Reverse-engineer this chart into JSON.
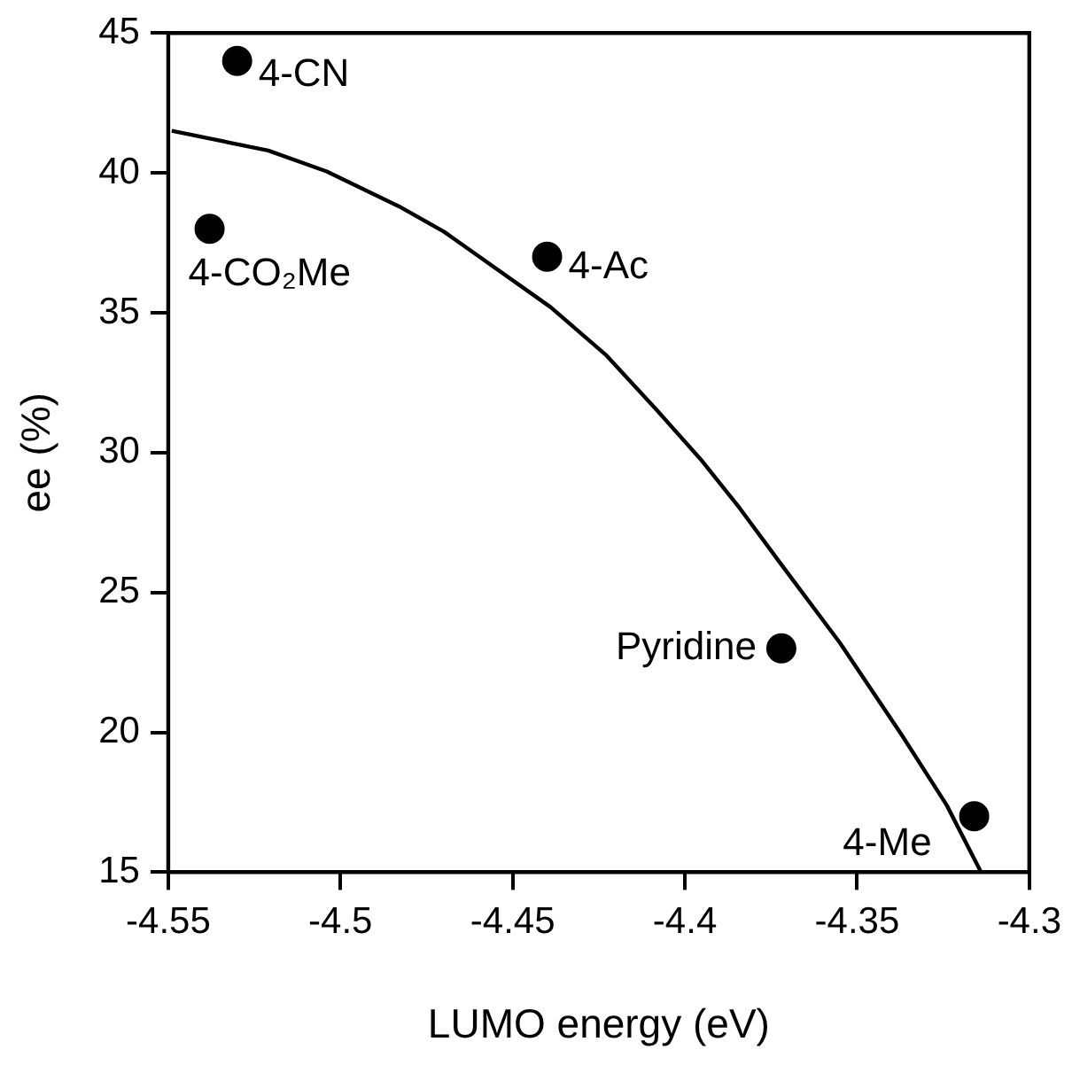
{
  "chart_data": {
    "type": "scatter",
    "xlabel": "LUMO energy (eV)",
    "ylabel": "ee (%)",
    "xlim": [
      -4.55,
      -4.3
    ],
    "xticks": [
      -4.55,
      -4.5,
      -4.45,
      -4.4,
      -4.35,
      -4.3
    ],
    "ylim": [
      15,
      45
    ],
    "yticks": [
      15,
      20,
      25,
      30,
      35,
      40,
      45
    ],
    "grid": false,
    "legend": false,
    "series": [
      {
        "type": "scatter",
        "color": "#000000",
        "marker": "circle",
        "x": [
          -4.53,
          -4.538,
          -4.44,
          -4.372,
          -4.316
        ],
        "values": [
          44,
          38,
          37,
          23,
          17
        ]
      },
      {
        "type": "line",
        "color": "#000000",
        "marker": "none",
        "line_style": "solid",
        "x": [
          -4.549,
          -4.521,
          -4.504,
          -4.483,
          -4.47,
          -4.439,
          -4.423,
          -4.408,
          -4.395,
          -4.384,
          -4.372,
          -4.355,
          -4.337,
          -4.324,
          -4.314
        ],
        "values": [
          41.5,
          40.8,
          40.05,
          38.8,
          37.9,
          35.2,
          33.5,
          31.5,
          29.7,
          28,
          26,
          23.2,
          19.9,
          17.4,
          15
        ]
      }
    ],
    "annotations": [
      {
        "text": "4-CN",
        "x": -4.53,
        "y": 44
      },
      {
        "text": "4-CO₂Me",
        "x": -4.538,
        "y": 38
      },
      {
        "text": "4-Ac",
        "x": -4.44,
        "y": 37
      },
      {
        "text": "Pyridine",
        "x": -4.372,
        "y": 23
      },
      {
        "text": "4-Me",
        "x": -4.316,
        "y": 17
      }
    ]
  }
}
